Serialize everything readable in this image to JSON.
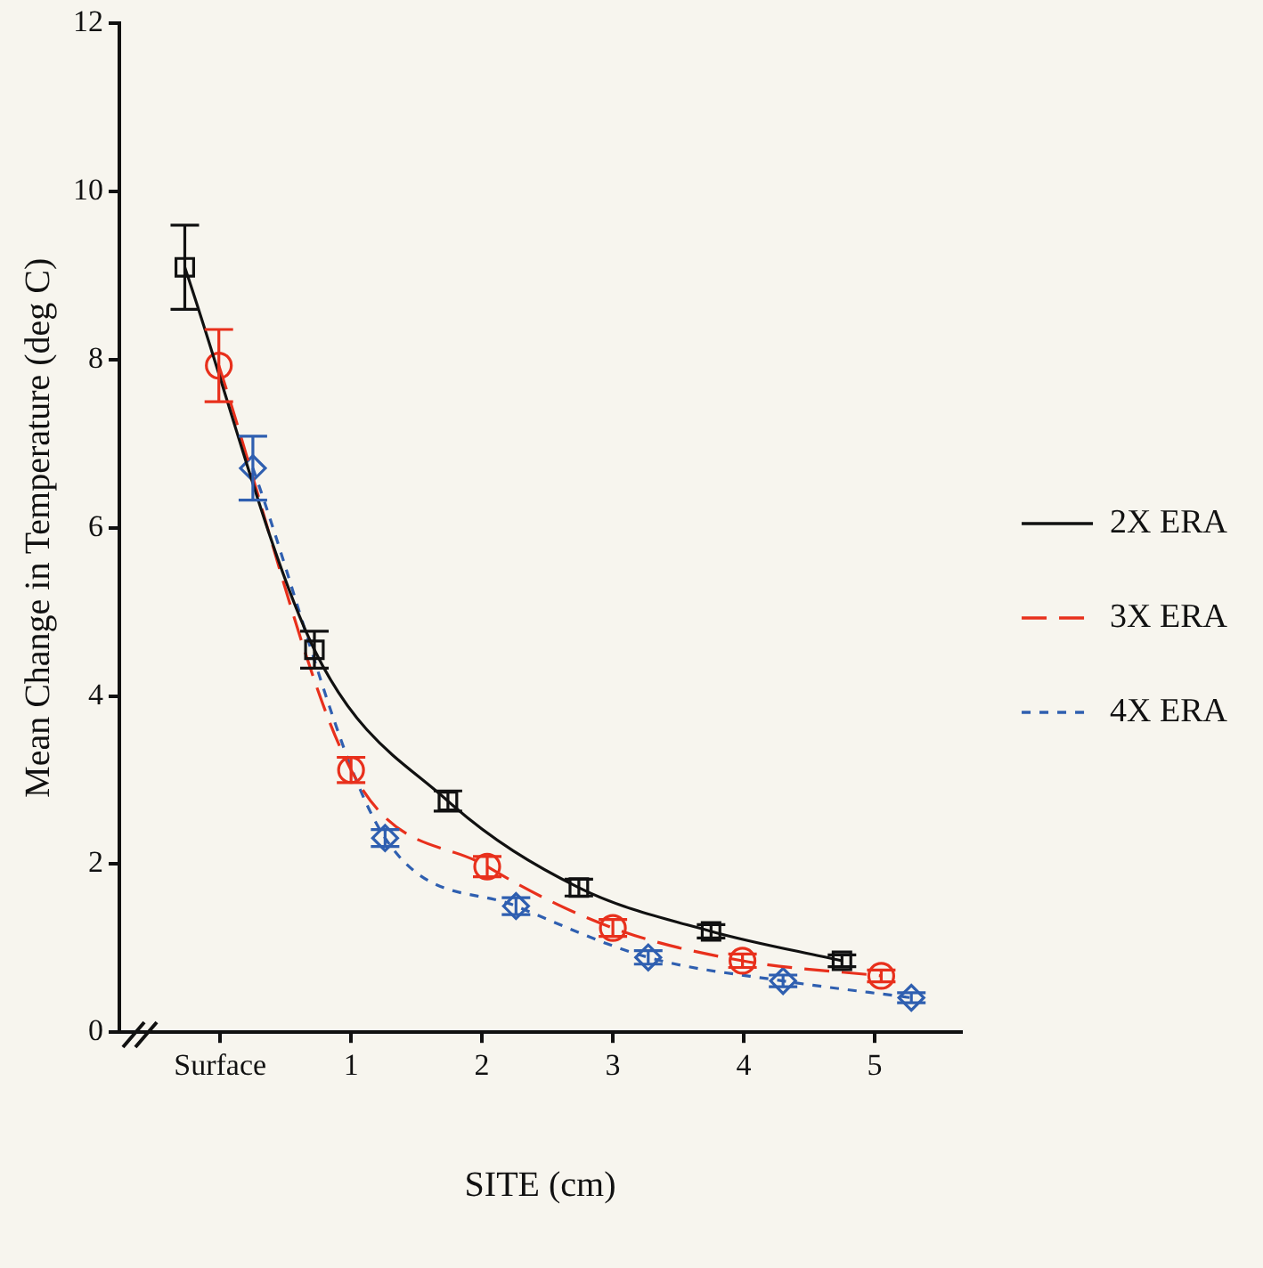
{
  "chart_data": {
    "type": "line",
    "xlabel": "SITE (cm)",
    "ylabel": "Mean Change in Temperature (deg C)",
    "xlim": [
      -0.77,
      5.66
    ],
    "xticks": [
      {
        "value": 0,
        "label": "Surface"
      },
      1,
      2,
      3,
      4,
      5
    ],
    "ylim": [
      0,
      12
    ],
    "yticks": [
      0,
      2,
      4,
      6,
      8,
      10,
      12
    ],
    "grid": false,
    "legend": "right",
    "series": [
      {
        "name": "2X ERA",
        "color": "#111111",
        "marker": "square",
        "line_style": "solid",
        "x": [
          -0.27,
          0.72,
          1.74,
          2.74,
          3.75,
          4.75
        ],
        "values": [
          9.1,
          4.55,
          2.75,
          1.72,
          1.2,
          0.85
        ],
        "errors": [
          0.5,
          0.22,
          0.12,
          0.1,
          0.08,
          0.07
        ]
      },
      {
        "name": "3X ERA",
        "color": "#e8301c",
        "marker": "circle",
        "line_style": "dashed",
        "x": [
          -0.01,
          1.0,
          2.04,
          3.0,
          3.99,
          5.05
        ],
        "values": [
          7.93,
          3.12,
          1.97,
          1.24,
          0.85,
          0.67
        ],
        "errors": [
          0.43,
          0.15,
          0.12,
          0.1,
          0.08,
          0.07
        ]
      },
      {
        "name": "4X ERA",
        "color": "#2f5fb0",
        "marker": "diamond",
        "line_style": "dotted",
        "x": [
          0.25,
          1.26,
          2.26,
          3.27,
          4.3,
          5.28
        ],
        "values": [
          6.71,
          2.31,
          1.5,
          0.89,
          0.61,
          0.41
        ],
        "errors": [
          0.38,
          0.1,
          0.1,
          0.08,
          0.07,
          0.06
        ]
      }
    ]
  }
}
